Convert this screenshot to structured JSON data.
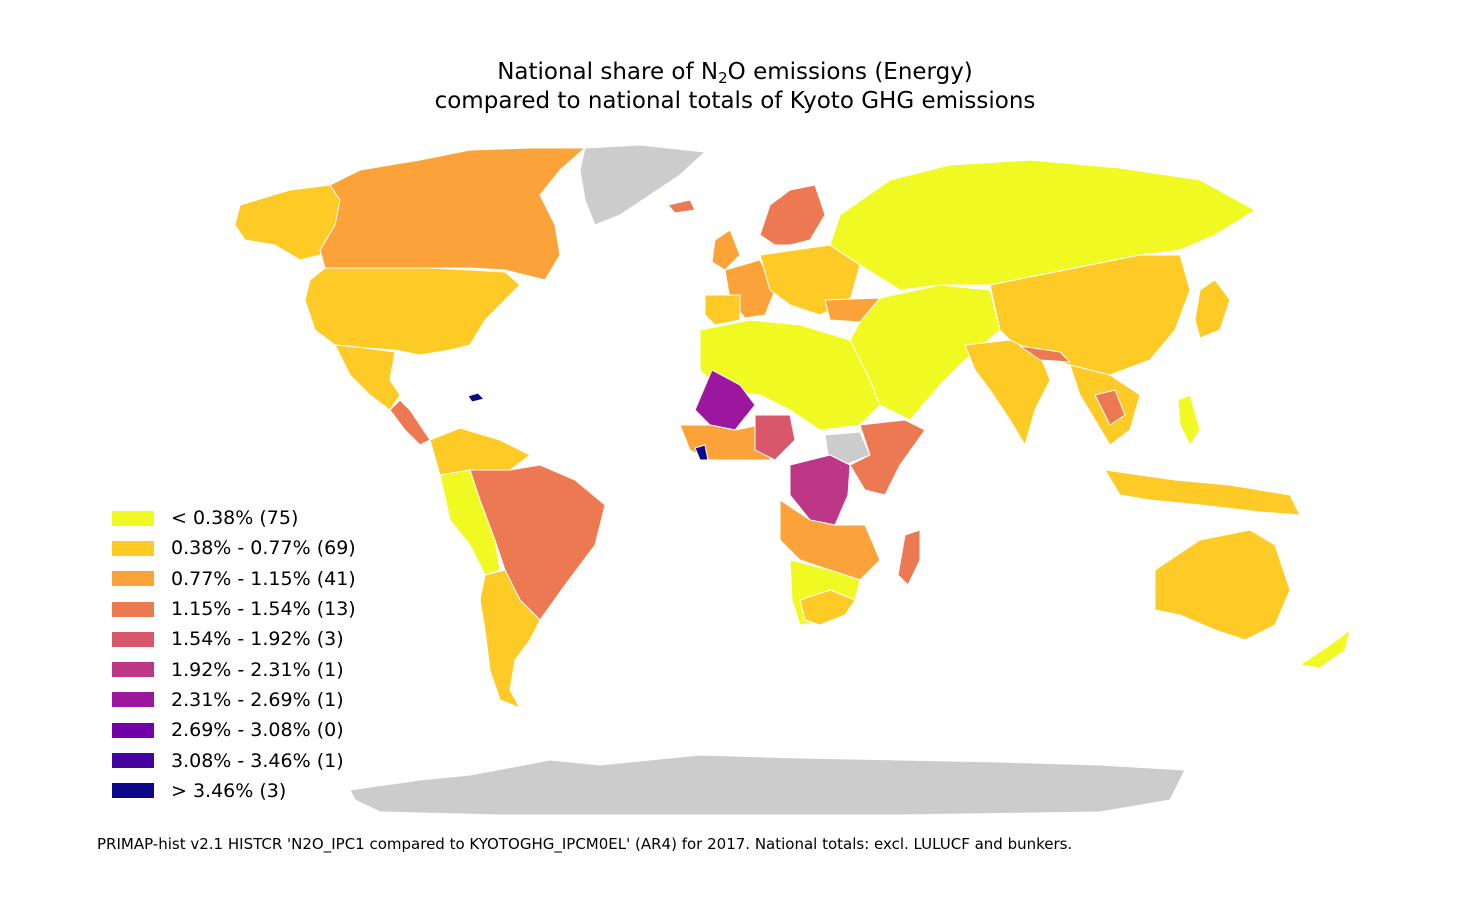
{
  "title": {
    "line1_pre": "National share of N",
    "line1_sub": "2",
    "line1_post": "O emissions (Energy)",
    "line2": "compared to national totals of Kyoto GHG emissions"
  },
  "legend": [
    {
      "label": "< 0.38% (75)",
      "color": "#f0f921"
    },
    {
      "label": "0.38% - 0.77% (69)",
      "color": "#fdca26"
    },
    {
      "label": "0.77% - 1.15% (41)",
      "color": "#fba238"
    },
    {
      "label": "1.15% - 1.54% (13)",
      "color": "#ed7953"
    },
    {
      "label": "1.54% - 1.92% (3)",
      "color": "#d8576b"
    },
    {
      "label": "1.92% - 2.31% (1)",
      "color": "#bd3786"
    },
    {
      "label": "2.31% - 2.69% (1)",
      "color": "#9c179e"
    },
    {
      "label": "2.69% - 3.08% (0)",
      "color": "#7201a8"
    },
    {
      "label": "3.08% - 3.46% (1)",
      "color": "#46039f"
    },
    {
      "label": "> 3.46% (3)",
      "color": "#0d0887"
    }
  ],
  "no_data_color": "#cccccc",
  "footnote": "PRIMAP-hist v2.1 HISTCR 'N2O_IPC1 compared to KYOTOGHG_IPCM0EL' (AR4) for 2017. National totals: excl. LULUCF and bunkers."
}
